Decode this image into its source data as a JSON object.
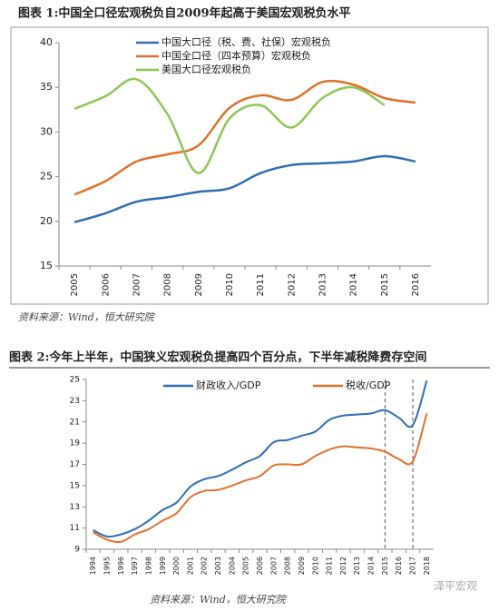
{
  "chart_data": [
    {
      "type": "line",
      "title": "图表 1:中国全口径宏观税负自2009年起高于美国宏观税负水平",
      "source": "资料来源：Wind，恒大研究院",
      "categories": [
        "2005",
        "2006",
        "2007",
        "2008",
        "2009",
        "2010",
        "2011",
        "2012",
        "2013",
        "2014",
        "2015",
        "2016"
      ],
      "ylim": [
        15,
        40
      ],
      "yticks": [
        15,
        20,
        25,
        30,
        35,
        40
      ],
      "grid": false,
      "legend": "top-left",
      "series": [
        {
          "name": "中国大口径（税、费、社保）宏观税负",
          "color": "#2e6db4",
          "values": [
            19.9,
            20.9,
            22.2,
            22.7,
            23.3,
            23.7,
            25.4,
            26.3,
            26.5,
            26.7,
            27.3,
            26.7
          ]
        },
        {
          "name": "中国全口径（四本预算）宏观税负",
          "color": "#e0712c",
          "values": [
            23.0,
            24.5,
            26.7,
            27.5,
            28.5,
            32.7,
            34.1,
            33.6,
            35.6,
            35.3,
            33.8,
            33.3
          ]
        },
        {
          "name": "美国大口径宏观税负",
          "color": "#8dc655",
          "values": [
            32.6,
            34.0,
            35.9,
            32.0,
            25.4,
            31.5,
            33.0,
            30.5,
            33.8,
            35.0,
            33.0,
            null
          ]
        }
      ]
    },
    {
      "type": "line",
      "title": "图表 2:今年上半年，中国狭义宏观税负提高四个百分点，下半年减税降费存空间",
      "source": "资料来源：Wind，恒大研究院",
      "categories": [
        "1994",
        "1995",
        "1996",
        "1997",
        "1998",
        "1999",
        "2000",
        "2001",
        "2002",
        "2003",
        "2004",
        "2005",
        "2006",
        "2007",
        "2008",
        "2009",
        "2010",
        "2011",
        "2012",
        "2013",
        "2014",
        "2015",
        "2016",
        "2017",
        "2018"
      ],
      "ylim": [
        9,
        25
      ],
      "yticks": [
        9,
        11,
        13,
        15,
        17,
        19,
        21,
        23,
        25
      ],
      "grid": false,
      "legend": "top",
      "vlines": [
        "2015",
        "2017"
      ],
      "series": [
        {
          "name": "财政收入/GDP",
          "color": "#2e6db4",
          "values": [
            10.8,
            10.2,
            10.4,
            10.9,
            11.7,
            12.7,
            13.4,
            14.9,
            15.6,
            15.9,
            16.5,
            17.2,
            17.8,
            19.1,
            19.3,
            19.7,
            20.1,
            21.2,
            21.6,
            21.7,
            21.8,
            22.1,
            21.4,
            20.7,
            24.9
          ]
        },
        {
          "name": "税收/GDP",
          "color": "#e0712c",
          "values": [
            10.6,
            9.9,
            9.7,
            10.4,
            10.9,
            11.7,
            12.4,
            13.9,
            14.5,
            14.6,
            15.0,
            15.5,
            15.9,
            16.9,
            17.0,
            17.0,
            17.8,
            18.4,
            18.7,
            18.6,
            18.5,
            18.2,
            17.5,
            17.3,
            21.8
          ]
        }
      ]
    }
  ],
  "watermark": "泽平宏观"
}
